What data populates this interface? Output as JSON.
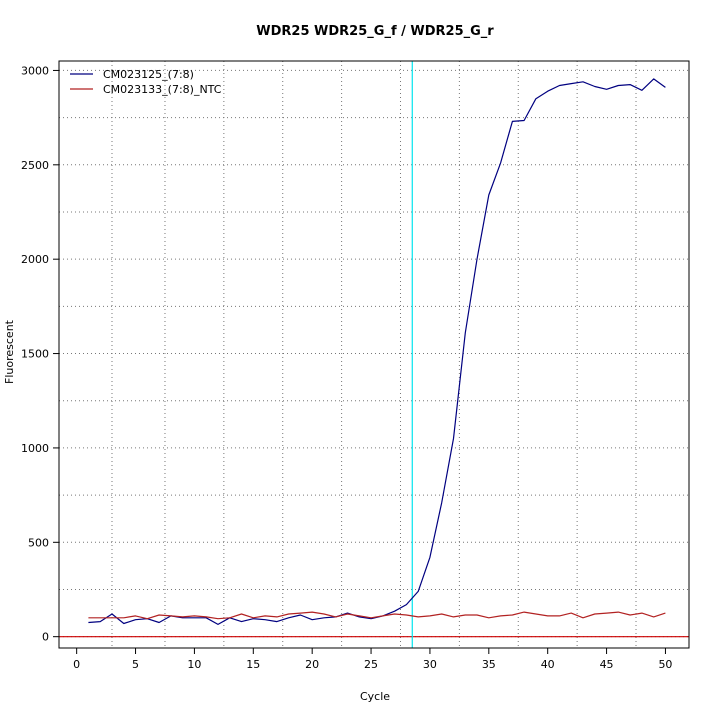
{
  "chart_data": {
    "type": "line",
    "title": "WDR25  WDR25_G_f / WDR25_G_r",
    "xlabel": "Cycle",
    "ylabel": "Fluorescent",
    "xlim": [
      -1.5,
      52
    ],
    "ylim": [
      -60,
      3050
    ],
    "xticks": [
      0,
      5,
      10,
      15,
      20,
      25,
      30,
      35,
      40,
      45,
      50
    ],
    "yticks": [
      0,
      500,
      1000,
      1500,
      2000,
      2500,
      3000
    ],
    "x_grid": [
      3,
      7.5,
      12.5,
      17.5,
      22.5,
      27.5,
      32.5,
      37.5,
      42.5,
      47.5
    ],
    "y_grid": [
      0,
      250,
      500,
      750,
      1000,
      1250,
      1500,
      1750,
      2000,
      2250,
      2500,
      2750,
      3000
    ],
    "grid": true,
    "legend_position": "top-left",
    "threshold": {
      "cycle": 28.5,
      "color": "#00e5ee"
    },
    "baseline": {
      "value": 0,
      "color": "#cc0000"
    },
    "x": [
      1,
      2,
      3,
      4,
      5,
      6,
      7,
      8,
      9,
      10,
      11,
      12,
      13,
      14,
      15,
      16,
      17,
      18,
      19,
      20,
      21,
      22,
      23,
      24,
      25,
      26,
      27,
      28,
      29,
      30,
      31,
      32,
      33,
      34,
      35,
      36,
      37,
      38,
      39,
      40,
      41,
      42,
      43,
      44,
      45,
      46,
      47,
      48,
      49,
      50
    ],
    "series": [
      {
        "name": "CM023125_(7:8)",
        "color": "#000080",
        "values": [
          75,
          80,
          120,
          70,
          90,
          95,
          75,
          110,
          100,
          100,
          100,
          65,
          100,
          80,
          95,
          90,
          80,
          100,
          115,
          90,
          100,
          105,
          125,
          105,
          95,
          110,
          135,
          170,
          240,
          420,
          710,
          1050,
          1610,
          2000,
          2340,
          2510,
          2730,
          2735,
          2850,
          2890,
          2920,
          2930,
          2940,
          2915,
          2900,
          2920,
          2925,
          2895,
          2955,
          2910
        ]
      },
      {
        "name": "CM023133_(7:8)_NTC",
        "color": "#b22222",
        "values": [
          100,
          100,
          100,
          100,
          110,
          95,
          115,
          110,
          105,
          110,
          105,
          95,
          100,
          120,
          100,
          110,
          105,
          120,
          125,
          130,
          120,
          105,
          120,
          110,
          100,
          110,
          120,
          115,
          105,
          110,
          120,
          105,
          115,
          115,
          100,
          110,
          115,
          130,
          120,
          110,
          110,
          125,
          100,
          120,
          125,
          130,
          115,
          125,
          105,
          125
        ]
      }
    ]
  }
}
